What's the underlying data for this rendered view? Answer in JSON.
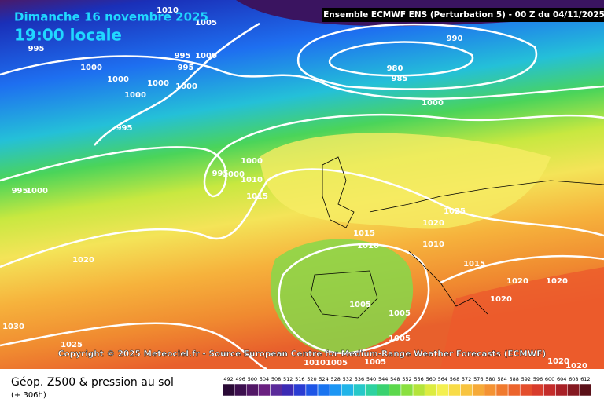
{
  "header": {
    "date": "Dimanche 16 novembre 2025",
    "time": "19:00 locale",
    "run": "Ensemble ECMWF ENS  (Perturbation 5)  - 00 Z du 04/11/2025"
  },
  "copyright": "Copyright © 2025 Meteociel.fr - Source European Centre for Medium-Range Weather Forecasts (ECMWF)",
  "footer": {
    "title": "Géop. Z500 & pression au sol",
    "lead": "(+ 306h)"
  },
  "isobar_labels": [
    1010,
    1005,
    995,
    995,
    1000,
    995,
    1000,
    1000,
    1000,
    1000,
    1000,
    995,
    990,
    980,
    985,
    1000,
    1000,
    995,
    1000,
    1010,
    1015,
    995,
    1000,
    1025,
    1020,
    1015,
    1010,
    1010,
    1015,
    1020,
    1020,
    1020,
    1020,
    1005,
    1005,
    1005,
    1030,
    1025,
    1010,
    1005,
    1005,
    1020,
    1020
  ],
  "legend": {
    "labels": [
      492,
      496,
      500,
      504,
      508,
      512,
      516,
      520,
      524,
      528,
      532,
      536,
      540,
      544,
      548,
      552,
      556,
      560,
      564,
      568,
      572,
      576,
      580,
      584,
      588,
      592,
      596,
      600,
      604,
      608,
      612
    ],
    "colors": [
      "#2a0a36",
      "#3c0f4e",
      "#521766",
      "#6a2080",
      "#5a2a9a",
      "#3c2ab4",
      "#2a3cd2",
      "#1e55e6",
      "#1a74f0",
      "#1c96f4",
      "#20b4e8",
      "#26c8c8",
      "#2ed2a0",
      "#3ad270",
      "#5cd84c",
      "#8ae040",
      "#b4e43a",
      "#dcec40",
      "#f4f050",
      "#f8dc48",
      "#f8c440",
      "#f6aa38",
      "#f49232",
      "#f07a2e",
      "#ec642c",
      "#e44e2c",
      "#d83c2c",
      "#c42c2a",
      "#a82026",
      "#841820",
      "#5a1018"
    ]
  }
}
